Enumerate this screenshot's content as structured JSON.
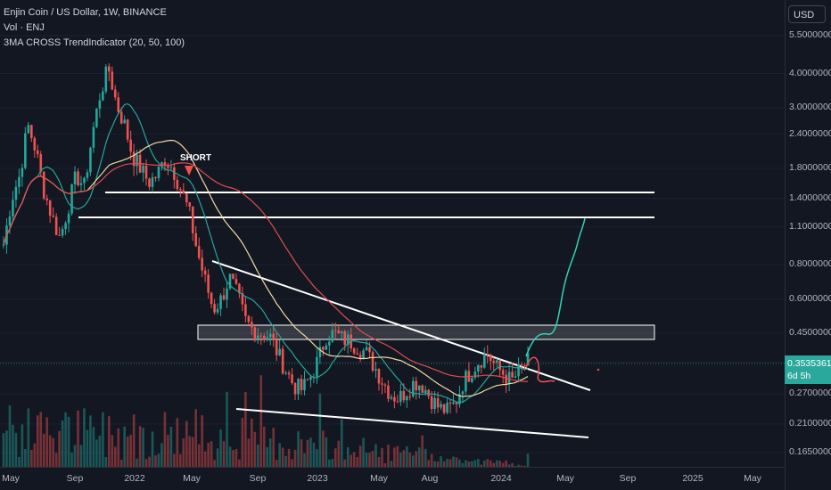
{
  "legend": {
    "title": "Enjin Coin / US Dollar, 1W, BINANCE",
    "volume": "Vol · ENJ",
    "indicator": "3MA CROSS TrendIndicator (20, 50, 100)"
  },
  "currency_button": "USD",
  "price_tag": {
    "price": "0.35353611",
    "countdown": "6d 5h"
  },
  "annotation": "SHORT",
  "colors": {
    "background": "#131722",
    "up": "#26a69a",
    "down": "#ef5350",
    "ma20": "#26a69a",
    "ma50": "#f0d9a0",
    "ma100": "#e04d4d",
    "projection": "#2ed3b7",
    "drawing": "#ffffff"
  },
  "chart_data": {
    "type": "candlestick",
    "title": "Enjin Coin / US Dollar, 1W, BINANCE",
    "y_scale": "log",
    "y_ticks": [
      "5.50000000",
      "4.00000000",
      "3.00000000",
      "2.40000000",
      "1.80000000",
      "1.40000000",
      "1.10000000",
      "0.80000000",
      "0.60000000",
      "0.45000000",
      "0.35353611",
      "0.27000000",
      "0.21000000",
      "0.16500000"
    ],
    "x_ticks": [
      "May",
      "Sep",
      "2022",
      "May",
      "Sep",
      "2023",
      "May",
      "Aug",
      "2024",
      "May",
      "Sep",
      "2025",
      "May"
    ],
    "current_price": 0.35353611,
    "levels": {
      "resistance_1": 1.5,
      "resistance_2": 1.2,
      "zone_top": 0.485,
      "zone_bottom": 0.435
    },
    "series_close_path": [
      0.95,
      1.4,
      1.7,
      2.6,
      2.1,
      1.5,
      1.2,
      1.0,
      1.3,
      1.7,
      1.55,
      2.4,
      3.4,
      4.2,
      3.1,
      2.6,
      2.0,
      1.8,
      1.6,
      1.7,
      1.95,
      1.8,
      1.5,
      1.25,
      0.9,
      0.7,
      0.55,
      0.6,
      0.72,
      0.62,
      0.5,
      0.46,
      0.45,
      0.44,
      0.38,
      0.33,
      0.29,
      0.28,
      0.31,
      0.36,
      0.44,
      0.45,
      0.43,
      0.42,
      0.4,
      0.38,
      0.34,
      0.3,
      0.27,
      0.26,
      0.28,
      0.3,
      0.29,
      0.26,
      0.24,
      0.235,
      0.25,
      0.3,
      0.33,
      0.36,
      0.38,
      0.34,
      0.32,
      0.3,
      0.33,
      0.355
    ]
  }
}
